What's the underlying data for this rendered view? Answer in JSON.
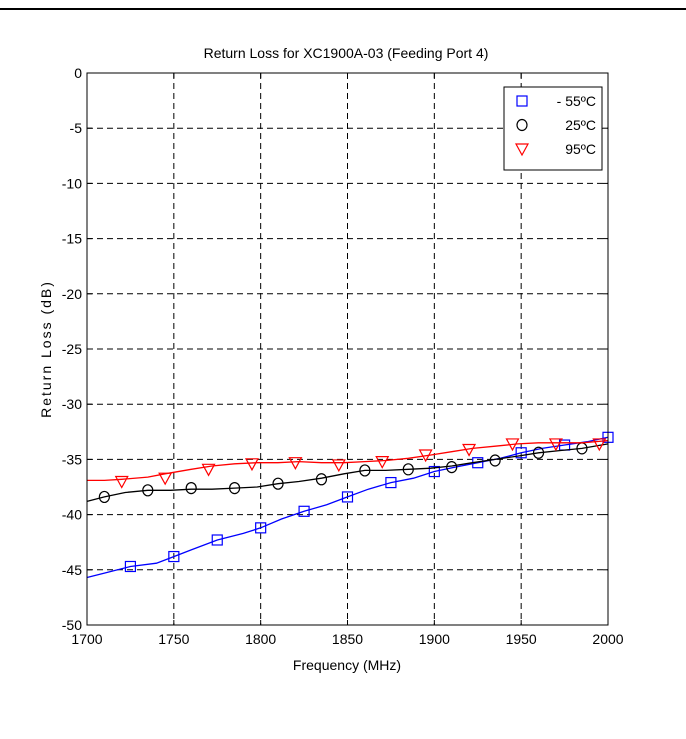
{
  "chart_data": {
    "type": "line",
    "title": "Return Loss for XC1900A-03 (Feeding Port 4)",
    "xlabel": "Frequency (MHz)",
    "ylabel": "Return Loss (dB)",
    "xlim": [
      1700,
      2000
    ],
    "ylim": [
      -50,
      0
    ],
    "xticks": [
      1700,
      1750,
      1800,
      1850,
      1900,
      1950,
      2000
    ],
    "yticks": [
      0,
      -5,
      -10,
      -15,
      -20,
      -25,
      -30,
      -35,
      -40,
      -45,
      -50
    ],
    "grid": true,
    "grid_style": "dashed",
    "legend_position": "top-right",
    "series": [
      {
        "name": "- 55ºC",
        "color": "#0000ff",
        "marker": "square",
        "line": [
          [
            1700,
            -45.7
          ],
          [
            1710,
            -45.3
          ],
          [
            1725,
            -44.7
          ],
          [
            1740,
            -44.4
          ],
          [
            1750,
            -43.8
          ],
          [
            1760,
            -43.2
          ],
          [
            1775,
            -42.3
          ],
          [
            1790,
            -41.7
          ],
          [
            1800,
            -41.2
          ],
          [
            1812,
            -40.4
          ],
          [
            1825,
            -39.7
          ],
          [
            1838,
            -39.1
          ],
          [
            1850,
            -38.4
          ],
          [
            1862,
            -37.7
          ],
          [
            1875,
            -37.1
          ],
          [
            1888,
            -36.7
          ],
          [
            1900,
            -36.1
          ],
          [
            1912,
            -35.7
          ],
          [
            1925,
            -35.3
          ],
          [
            1938,
            -34.9
          ],
          [
            1950,
            -34.4
          ],
          [
            1962,
            -34.0
          ],
          [
            1975,
            -33.7
          ],
          [
            1988,
            -33.4
          ],
          [
            2000,
            -33.0
          ]
        ],
        "markers": [
          [
            1725,
            -44.7
          ],
          [
            1750,
            -43.8
          ],
          [
            1775,
            -42.3
          ],
          [
            1800,
            -41.2
          ],
          [
            1825,
            -39.7
          ],
          [
            1850,
            -38.4
          ],
          [
            1875,
            -37.1
          ],
          [
            1900,
            -36.1
          ],
          [
            1925,
            -35.3
          ],
          [
            1950,
            -34.4
          ],
          [
            1975,
            -33.7
          ],
          [
            2000,
            -33.0
          ]
        ]
      },
      {
        "name": "25ºC",
        "color": "#000000",
        "marker": "circle",
        "line": [
          [
            1700,
            -38.8
          ],
          [
            1710,
            -38.4
          ],
          [
            1722,
            -38.0
          ],
          [
            1735,
            -37.8
          ],
          [
            1748,
            -37.8
          ],
          [
            1760,
            -37.7
          ],
          [
            1772,
            -37.7
          ],
          [
            1785,
            -37.6
          ],
          [
            1798,
            -37.5
          ],
          [
            1810,
            -37.2
          ],
          [
            1822,
            -37.0
          ],
          [
            1835,
            -36.7
          ],
          [
            1848,
            -36.3
          ],
          [
            1860,
            -36.0
          ],
          [
            1872,
            -36.0
          ],
          [
            1885,
            -35.9
          ],
          [
            1898,
            -35.8
          ],
          [
            1910,
            -35.6
          ],
          [
            1922,
            -35.3
          ],
          [
            1935,
            -35.0
          ],
          [
            1948,
            -34.7
          ],
          [
            1960,
            -34.4
          ],
          [
            1972,
            -34.2
          ],
          [
            1985,
            -34.0
          ],
          [
            2000,
            -33.6
          ]
        ],
        "markers": [
          [
            1710,
            -38.4
          ],
          [
            1735,
            -37.8
          ],
          [
            1760,
            -37.6
          ],
          [
            1785,
            -37.6
          ],
          [
            1810,
            -37.2
          ],
          [
            1835,
            -36.8
          ],
          [
            1860,
            -36.0
          ],
          [
            1885,
            -35.9
          ],
          [
            1910,
            -35.7
          ],
          [
            1935,
            -35.1
          ],
          [
            1960,
            -34.4
          ],
          [
            1985,
            -34.0
          ]
        ]
      },
      {
        "name": "95ºC",
        "color": "#ff0000",
        "marker": "triangle-down",
        "line": [
          [
            1700,
            -36.9
          ],
          [
            1710,
            -36.9
          ],
          [
            1720,
            -36.8
          ],
          [
            1735,
            -36.6
          ],
          [
            1745,
            -36.3
          ],
          [
            1760,
            -35.9
          ],
          [
            1772,
            -35.6
          ],
          [
            1785,
            -35.4
          ],
          [
            1798,
            -35.3
          ],
          [
            1810,
            -35.3
          ],
          [
            1822,
            -35.2
          ],
          [
            1835,
            -35.3
          ],
          [
            1848,
            -35.3
          ],
          [
            1860,
            -35.2
          ],
          [
            1872,
            -35.1
          ],
          [
            1885,
            -34.9
          ],
          [
            1898,
            -34.6
          ],
          [
            1910,
            -34.3
          ],
          [
            1922,
            -34.0
          ],
          [
            1935,
            -33.8
          ],
          [
            1948,
            -33.6
          ],
          [
            1960,
            -33.5
          ],
          [
            1972,
            -33.5
          ],
          [
            1985,
            -33.5
          ],
          [
            2000,
            -33.3
          ]
        ],
        "markers": [
          [
            1720,
            -37.0
          ],
          [
            1745,
            -36.7
          ],
          [
            1770,
            -35.9
          ],
          [
            1795,
            -35.4
          ],
          [
            1820,
            -35.3
          ],
          [
            1845,
            -35.5
          ],
          [
            1870,
            -35.2
          ],
          [
            1895,
            -34.6
          ],
          [
            1920,
            -34.1
          ],
          [
            1945,
            -33.6
          ],
          [
            1970,
            -33.6
          ],
          [
            1995,
            -33.6
          ]
        ]
      }
    ]
  }
}
